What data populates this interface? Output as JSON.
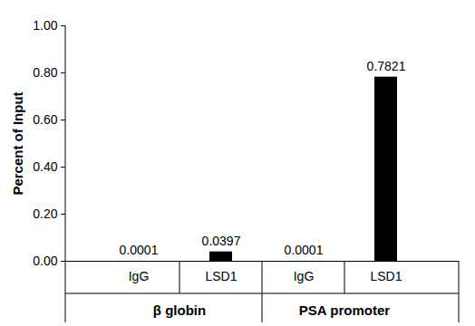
{
  "chart_data": {
    "type": "bar",
    "y_label": "Percent of Input",
    "categories": [
      "IgG",
      "LSD1",
      "IgG",
      "LSD1"
    ],
    "groups": [
      "β globin",
      "β globin",
      "PSA promoter",
      "PSA promoter"
    ],
    "values": [
      0.0001,
      0.0397,
      0.0001,
      0.7821
    ],
    "color": "#000000",
    "ylim": [
      0,
      1
    ],
    "yticks": [
      {
        "value": 0,
        "label": "0.00"
      },
      {
        "value": 0.2,
        "label": "0.20"
      },
      {
        "value": 0.4,
        "label": "0.40"
      },
      {
        "value": 0.6,
        "label": "0.60"
      },
      {
        "value": 0.8,
        "label": "0.80"
      },
      {
        "value": 1,
        "label": "1.00"
      }
    ],
    "grid": false,
    "data_labels": true
  }
}
